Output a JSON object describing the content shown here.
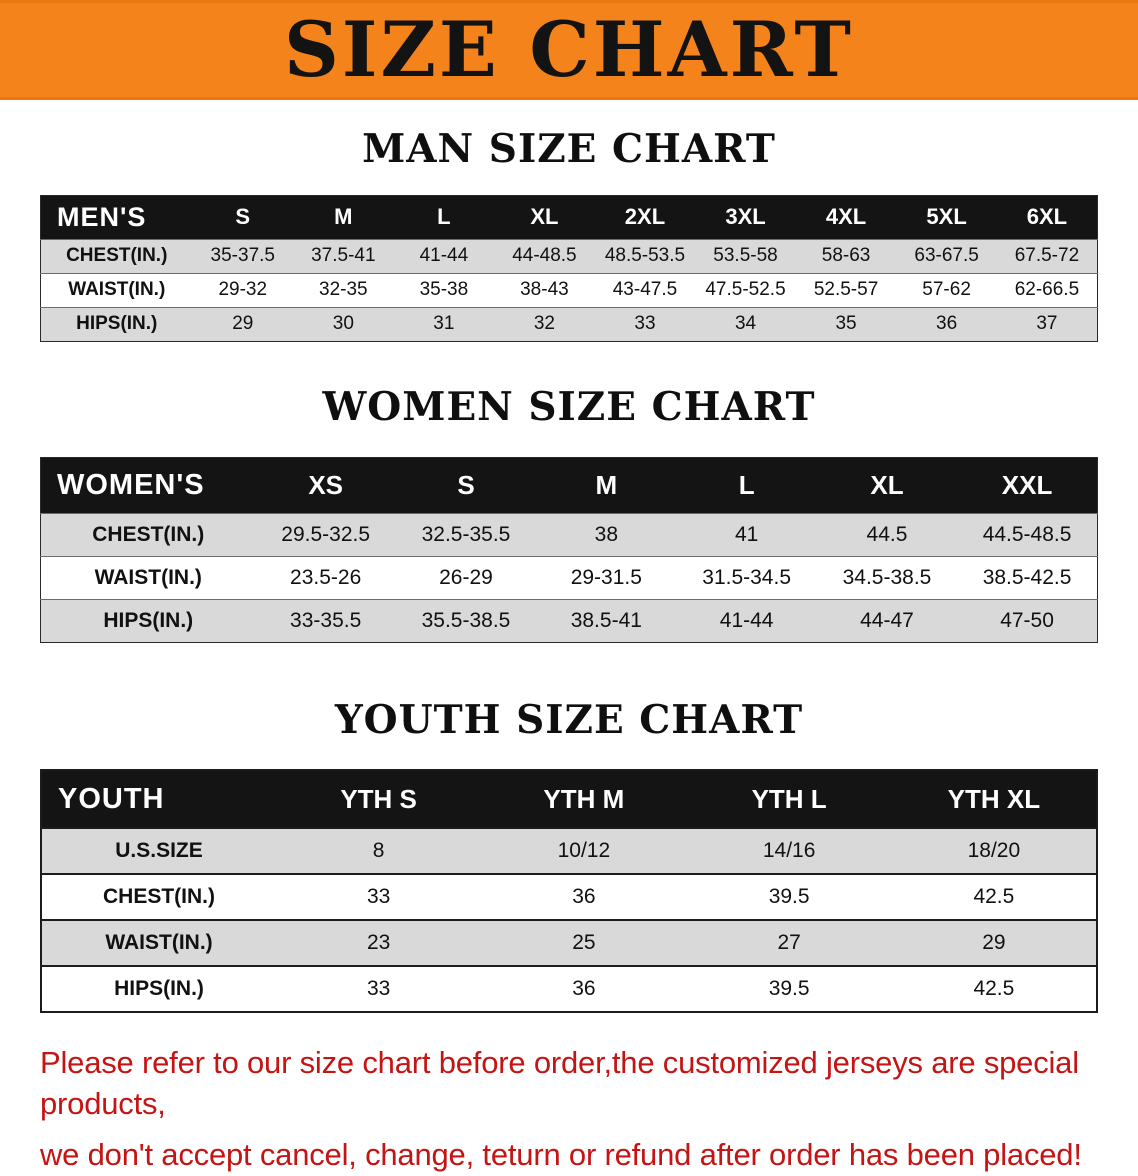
{
  "banner": {
    "title": "SIZE CHART",
    "bg_color": "#f4831b"
  },
  "sections": [
    {
      "heading": "MAN SIZE CHART",
      "table": {
        "header_label": "MEN'S",
        "columns": [
          "S",
          "M",
          "L",
          "XL",
          "2XL",
          "3XL",
          "4XL",
          "5XL",
          "6XL"
        ],
        "rows": [
          {
            "label": "CHEST(IN.)",
            "values": [
              "35-37.5",
              "37.5-41",
              "41-44",
              "44-48.5",
              "48.5-53.5",
              "53.5-58",
              "58-63",
              "63-67.5",
              "67.5-72"
            ]
          },
          {
            "label": "WAIST(IN.)",
            "values": [
              "29-32",
              "32-35",
              "35-38",
              "38-43",
              "43-47.5",
              "47.5-52.5",
              "52.5-57",
              "57-62",
              "62-66.5"
            ]
          },
          {
            "label": "HIPS(IN.)",
            "values": [
              "29",
              "30",
              "31",
              "32",
              "33",
              "34",
              "35",
              "36",
              "37"
            ]
          }
        ]
      }
    },
    {
      "heading": "WOMEN SIZE CHART",
      "table": {
        "header_label": "WOMEN'S",
        "columns": [
          "XS",
          "S",
          "M",
          "L",
          "XL",
          "XXL"
        ],
        "rows": [
          {
            "label": "CHEST(IN.)",
            "values": [
              "29.5-32.5",
              "32.5-35.5",
              "38",
              "41",
              "44.5",
              "44.5-48.5"
            ]
          },
          {
            "label": "WAIST(IN.)",
            "values": [
              "23.5-26",
              "26-29",
              "29-31.5",
              "31.5-34.5",
              "34.5-38.5",
              "38.5-42.5"
            ]
          },
          {
            "label": "HIPS(IN.)",
            "values": [
              "33-35.5",
              "35.5-38.5",
              "38.5-41",
              "41-44",
              "44-47",
              "47-50"
            ]
          }
        ]
      }
    },
    {
      "heading": "YOUTH SIZE CHART",
      "table": {
        "header_label": "YOUTH",
        "columns": [
          "YTH S",
          "YTH M",
          "YTH L",
          "YTH XL"
        ],
        "rows": [
          {
            "label": "U.S.SIZE",
            "values": [
              "8",
              "10/12",
              "14/16",
              "18/20"
            ]
          },
          {
            "label": "CHEST(IN.)",
            "values": [
              "33",
              "36",
              "39.5",
              "42.5"
            ]
          },
          {
            "label": "WAIST(IN.)",
            "values": [
              "23",
              "25",
              "27",
              "29"
            ]
          },
          {
            "label": "HIPS(IN.)",
            "values": [
              "33",
              "36",
              "39.5",
              "42.5"
            ]
          }
        ]
      }
    }
  ],
  "disclaimer": {
    "line1": "Please refer to our size chart before order,the customized jerseys are special products,",
    "line2": "we don't accept cancel, change, teturn or refund after order has been placed!",
    "color": "#c41414"
  }
}
